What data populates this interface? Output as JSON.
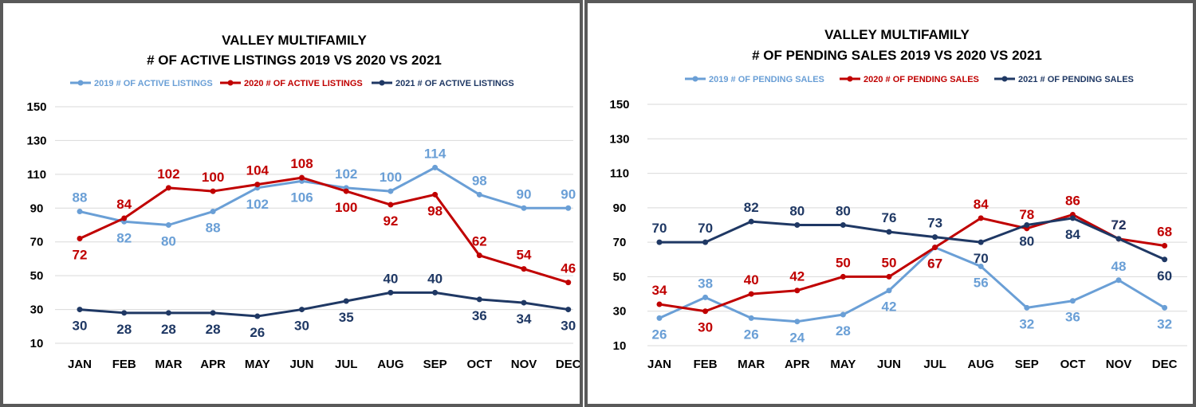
{
  "colors": {
    "s2019": "#6a9fd6",
    "s2020": "#c00000",
    "s2021": "#1f3864",
    "grid": "#d9d9d9"
  },
  "chart_data": [
    {
      "type": "line",
      "title": [
        "VALLEY MULTIFAMILY",
        "# OF ACTIVE LISTINGS 2019 VS 2020 VS 2021"
      ],
      "categories": [
        "JAN",
        "FEB",
        "MAR",
        "APR",
        "MAY",
        "JUN",
        "JUL",
        "AUG",
        "SEP",
        "OCT",
        "NOV",
        "DEC"
      ],
      "ylim": [
        10,
        150
      ],
      "yticks": [
        10,
        30,
        50,
        70,
        90,
        110,
        130,
        150
      ],
      "grid": true,
      "legend": "top",
      "series": [
        {
          "name": "2019 # OF ACTIVE LISTINGS",
          "values": [
            88,
            82,
            80,
            88,
            102,
            106,
            102,
            100,
            114,
            98,
            90,
            90
          ]
        },
        {
          "name": "2020 # OF ACTIVE LISTINGS",
          "values": [
            72,
            84,
            102,
            100,
            104,
            108,
            100,
            92,
            98,
            62,
            54,
            46
          ]
        },
        {
          "name": "2021 # OF ACTIVE LISTINGS",
          "values": [
            30,
            28,
            28,
            28,
            26,
            30,
            35,
            40,
            40,
            36,
            34,
            30
          ]
        }
      ]
    },
    {
      "type": "line",
      "title": [
        "VALLEY MULTIFAMILY",
        "# OF PENDING SALES 2019 VS 2020 VS 2021"
      ],
      "categories": [
        "JAN",
        "FEB",
        "MAR",
        "APR",
        "MAY",
        "JUN",
        "JUL",
        "AUG",
        "SEP",
        "OCT",
        "NOV",
        "DEC"
      ],
      "ylim": [
        10,
        150
      ],
      "yticks": [
        10,
        30,
        50,
        70,
        90,
        110,
        130,
        150
      ],
      "grid": true,
      "legend": "top",
      "series": [
        {
          "name": "2019 # OF PENDING SALES",
          "values": [
            26,
            38,
            26,
            24,
            28,
            42,
            67,
            56,
            32,
            36,
            48,
            32
          ]
        },
        {
          "name": "2020 # OF PENDING SALES",
          "values": [
            34,
            30,
            40,
            42,
            50,
            50,
            67,
            84,
            78,
            86,
            72,
            68
          ]
        },
        {
          "name": "2021 # OF PENDING SALES",
          "values": [
            70,
            70,
            82,
            80,
            80,
            76,
            73,
            70,
            80,
            84,
            72,
            60
          ]
        }
      ]
    }
  ]
}
